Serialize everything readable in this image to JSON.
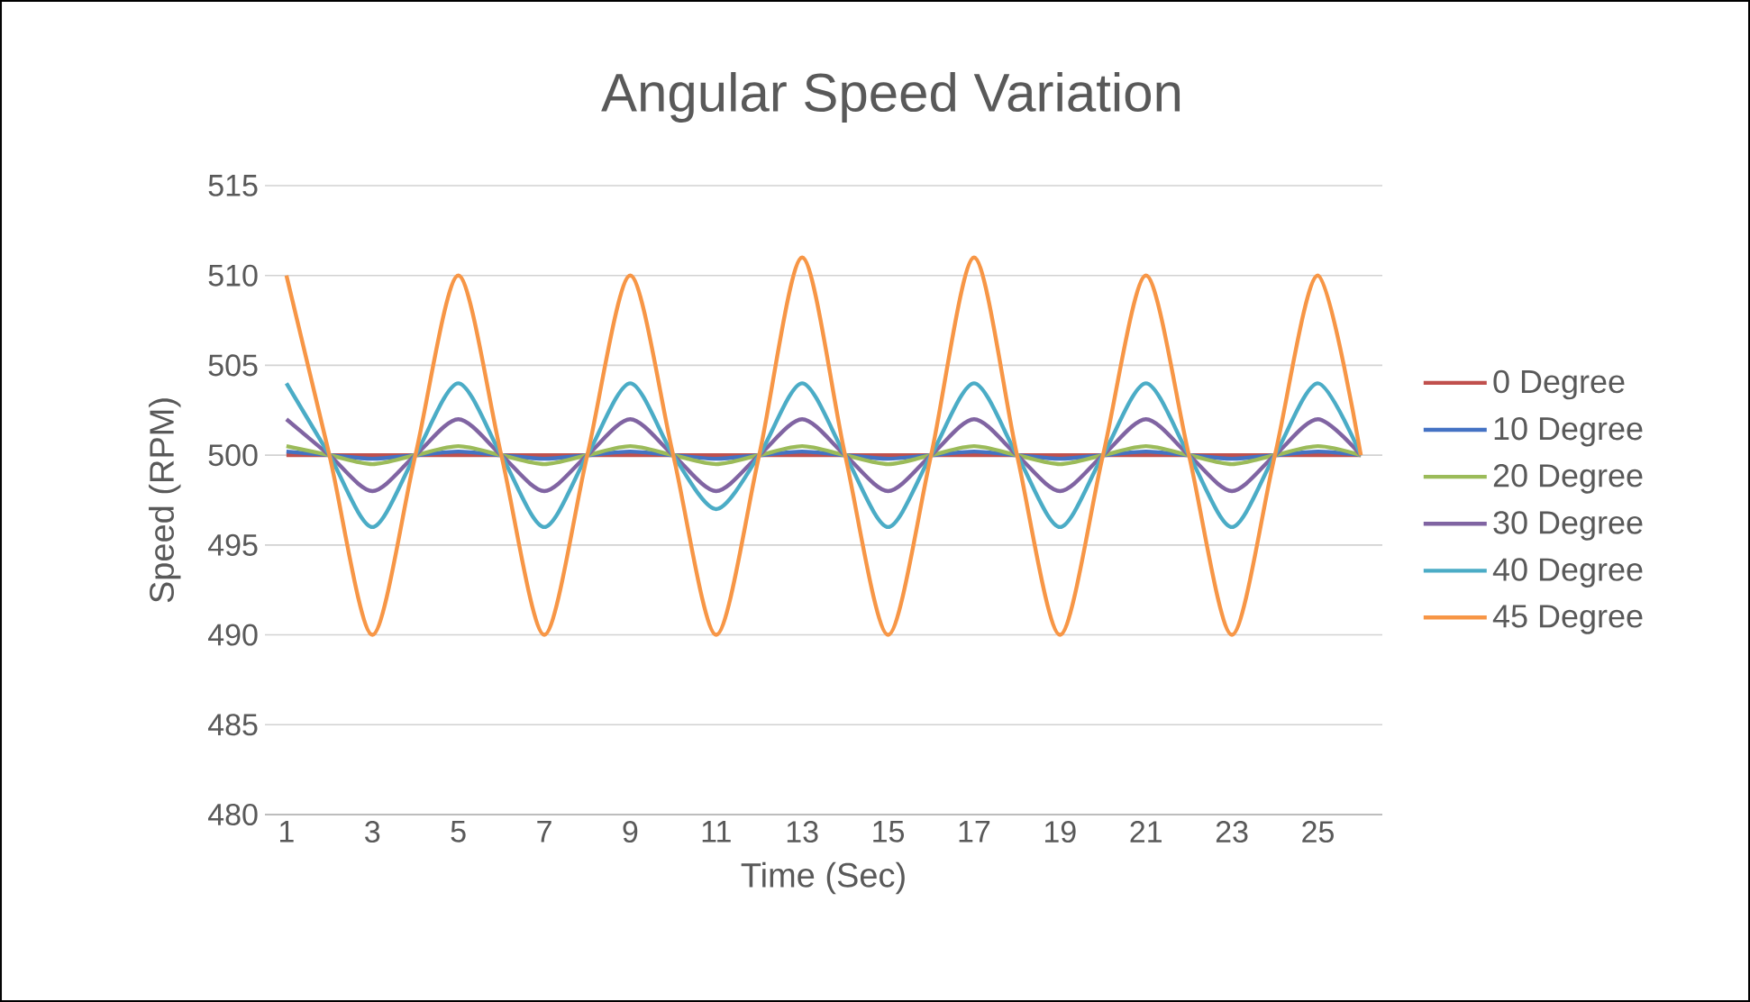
{
  "chart_data": {
    "type": "line",
    "title": "Angular Speed Variation",
    "xlabel": "Time (Sec)",
    "ylabel": "Speed (RPM)",
    "categories": [
      "1",
      null,
      "3",
      null,
      "5",
      null,
      "7",
      null,
      "9",
      null,
      "11",
      null,
      "13",
      null,
      "15",
      null,
      "17",
      null,
      "19",
      null,
      "21",
      null,
      "23",
      null,
      "25",
      null
    ],
    "series": [
      {
        "name": "0 Degree",
        "color": "#c0504d",
        "values": [
          500,
          500,
          500,
          500,
          500,
          500,
          500,
          500,
          500,
          500,
          500,
          500,
          500,
          500,
          500,
          500,
          500,
          500,
          500,
          500,
          500,
          500,
          500,
          500,
          500,
          500
        ]
      },
      {
        "name": "10 Degree",
        "color": "#4472c4",
        "values": [
          500.2,
          500,
          499.8,
          500,
          500.2,
          500,
          499.8,
          500,
          500.2,
          500,
          499.8,
          500,
          500.2,
          500,
          499.8,
          500,
          500.2,
          500,
          499.8,
          500,
          500.2,
          500,
          499.8,
          500,
          500.2,
          500
        ]
      },
      {
        "name": "20 Degree",
        "color": "#9bbb59",
        "values": [
          500.5,
          500,
          499.5,
          500,
          500.5,
          500,
          499.5,
          500,
          500.5,
          500,
          499.5,
          500,
          500.5,
          500,
          499.5,
          500,
          500.5,
          500,
          499.5,
          500,
          500.5,
          500,
          499.5,
          500,
          500.5,
          500
        ]
      },
      {
        "name": "30 Degree",
        "color": "#8064a2",
        "values": [
          502,
          500,
          498,
          500,
          502,
          500,
          498,
          500,
          502,
          500,
          498,
          500,
          502,
          500,
          498,
          500,
          502,
          500,
          498,
          500,
          502,
          500,
          498,
          500,
          502,
          500
        ]
      },
      {
        "name": "40 Degree",
        "color": "#4bacc6",
        "values": [
          504,
          500,
          496,
          500,
          504,
          500,
          496,
          500,
          504,
          500,
          497,
          500,
          504,
          500,
          496,
          500,
          504,
          500,
          496,
          500,
          504,
          500,
          496,
          500,
          504,
          500
        ]
      },
      {
        "name": "45 Degree",
        "color": "#f79646",
        "values": [
          510,
          500,
          490,
          500,
          510,
          500,
          490,
          500,
          510,
          500,
          490,
          500,
          511,
          500,
          490,
          500,
          511,
          500,
          490,
          500,
          510,
          500,
          490,
          500,
          510,
          500
        ]
      }
    ],
    "ylim": [
      480,
      515
    ],
    "yticks": [
      480,
      485,
      490,
      495,
      500,
      505,
      510,
      515
    ],
    "grid": "y",
    "legend": "right"
  }
}
